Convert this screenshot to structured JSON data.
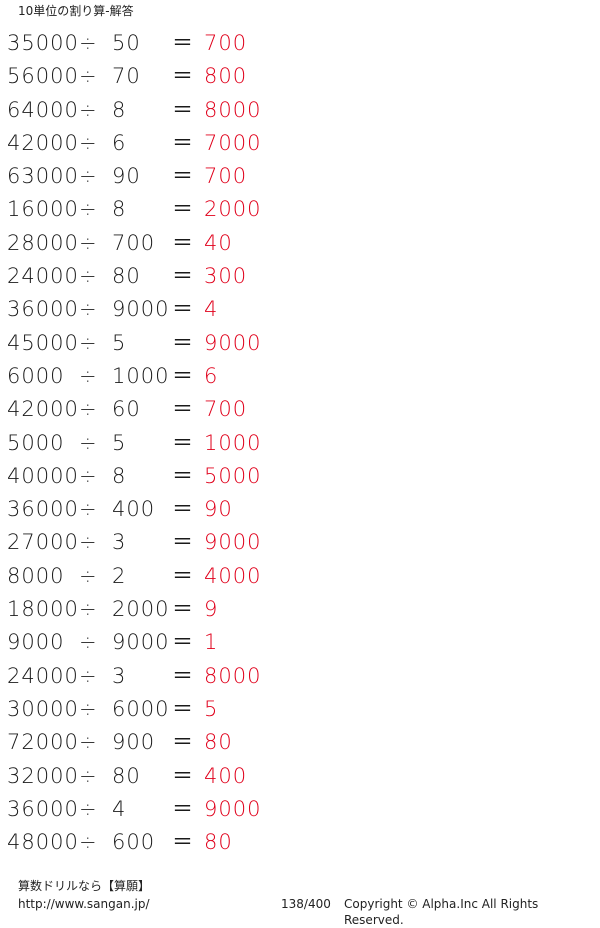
{
  "title": "10単位の割り算-解答",
  "operators": {
    "divide": "÷",
    "equals": "＝"
  },
  "problems": [
    {
      "dividend": "35000",
      "divisor": "50",
      "answer": "700"
    },
    {
      "dividend": "56000",
      "divisor": "70",
      "answer": "800"
    },
    {
      "dividend": "64000",
      "divisor": "8",
      "answer": "8000"
    },
    {
      "dividend": "42000",
      "divisor": "6",
      "answer": "7000"
    },
    {
      "dividend": "63000",
      "divisor": "90",
      "answer": "700"
    },
    {
      "dividend": "16000",
      "divisor": "8",
      "answer": "2000"
    },
    {
      "dividend": "28000",
      "divisor": "700",
      "answer": "40"
    },
    {
      "dividend": "24000",
      "divisor": "80",
      "answer": "300"
    },
    {
      "dividend": "36000",
      "divisor": "9000",
      "answer": "4"
    },
    {
      "dividend": "45000",
      "divisor": "5",
      "answer": "9000"
    },
    {
      "dividend": "6000",
      "divisor": "1000",
      "answer": "6"
    },
    {
      "dividend": "42000",
      "divisor": "60",
      "answer": "700"
    },
    {
      "dividend": "5000",
      "divisor": "5",
      "answer": "1000"
    },
    {
      "dividend": "40000",
      "divisor": "8",
      "answer": "5000"
    },
    {
      "dividend": "36000",
      "divisor": "400",
      "answer": "90"
    },
    {
      "dividend": "27000",
      "divisor": "3",
      "answer": "9000"
    },
    {
      "dividend": "8000",
      "divisor": "2",
      "answer": "4000"
    },
    {
      "dividend": "18000",
      "divisor": "2000",
      "answer": "9"
    },
    {
      "dividend": "9000",
      "divisor": "9000",
      "answer": "1"
    },
    {
      "dividend": "24000",
      "divisor": "3",
      "answer": "8000"
    },
    {
      "dividend": "30000",
      "divisor": "6000",
      "answer": "5"
    },
    {
      "dividend": "72000",
      "divisor": "900",
      "answer": "80"
    },
    {
      "dividend": "32000",
      "divisor": "80",
      "answer": "400"
    },
    {
      "dividend": "36000",
      "divisor": "4",
      "answer": "9000"
    },
    {
      "dividend": "48000",
      "divisor": "600",
      "answer": "80"
    }
  ],
  "footer": {
    "brand": "算数ドリルなら【算願】",
    "url": "http://www.sangan.jp/",
    "page": "138/400",
    "copyright": "Copyright © Alpha.Inc All Rights Reserved."
  },
  "colors": {
    "answer": "#e0001b",
    "text": "#1a1a1a"
  }
}
